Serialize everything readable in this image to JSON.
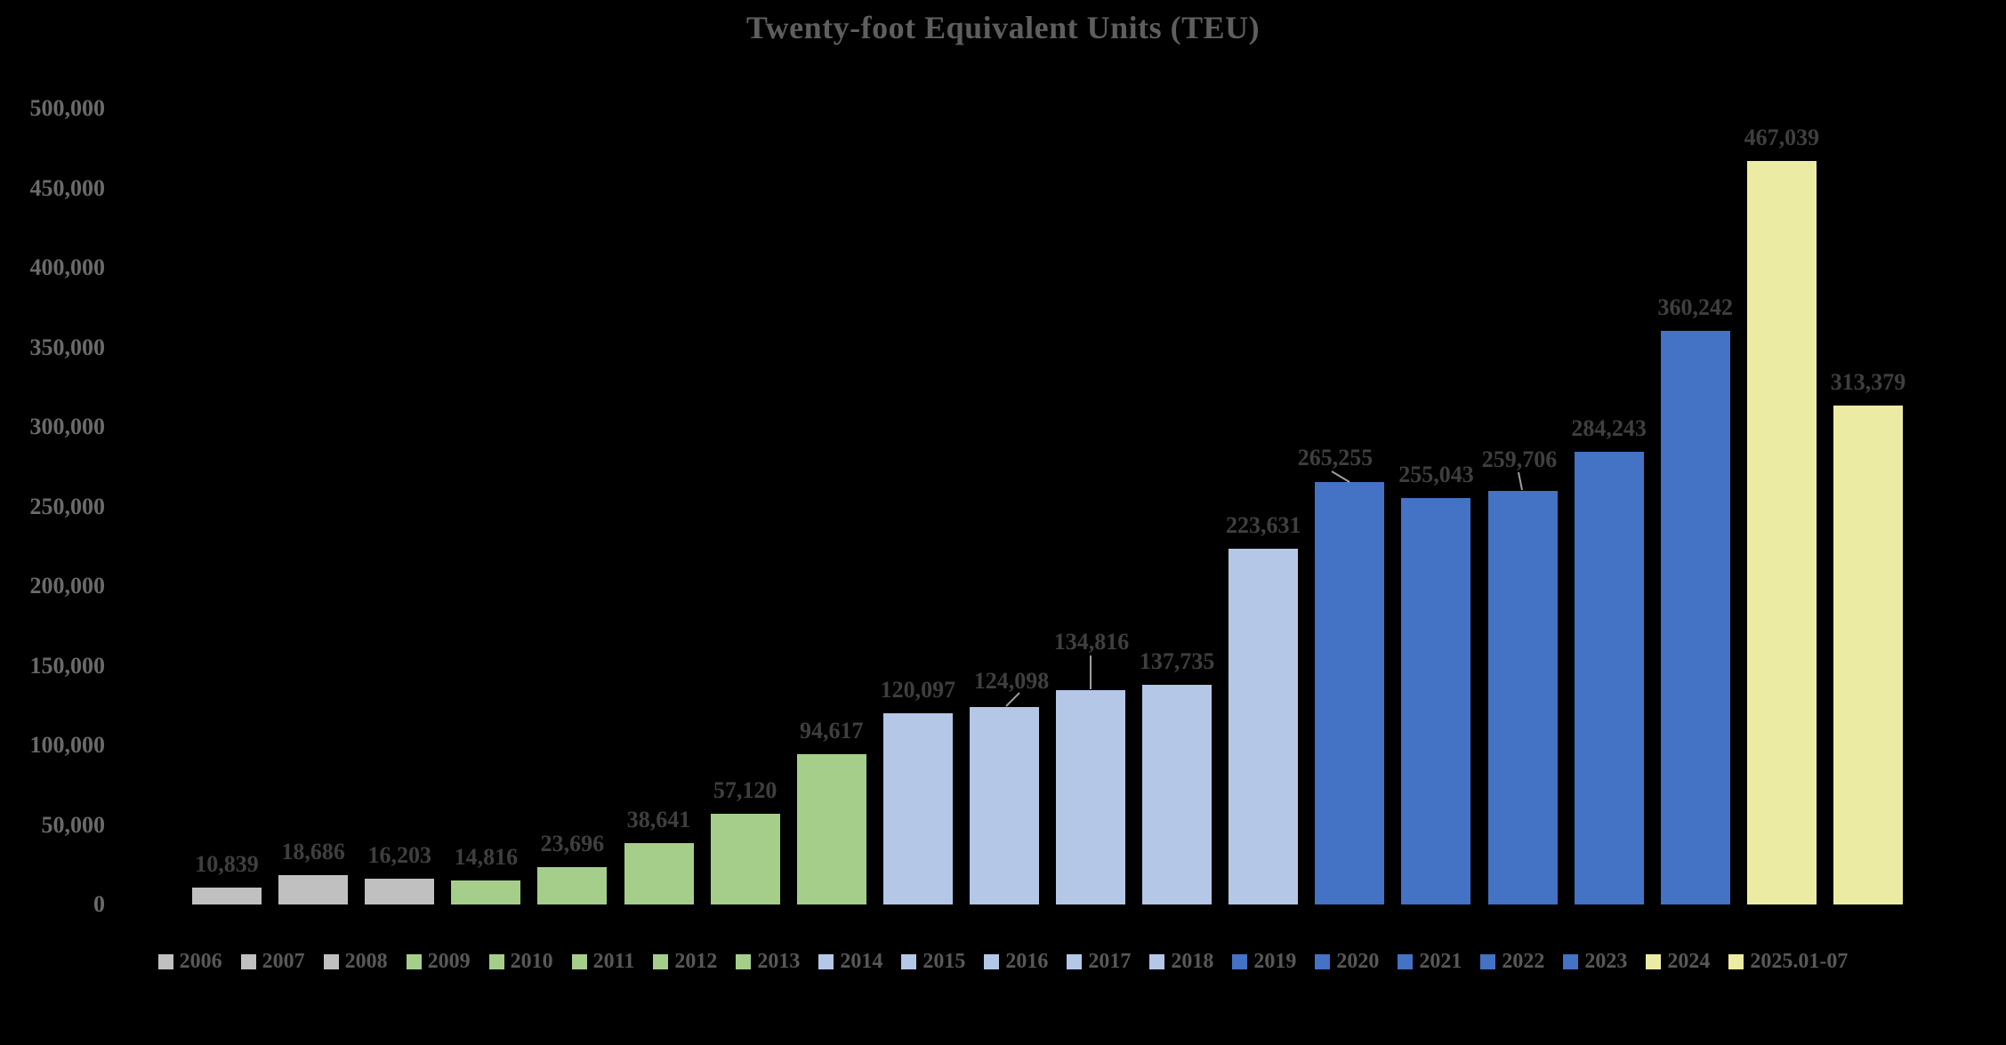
{
  "chart_data": {
    "type": "bar",
    "title": "Twenty-foot Equivalent Units (TEU)",
    "categories": [
      "2006",
      "2007",
      "2008",
      "2009",
      "2010",
      "2011",
      "2012",
      "2013",
      "2014",
      "2015",
      "2016",
      "2017",
      "2018",
      "2019",
      "2020",
      "2021",
      "2022",
      "2023",
      "2024",
      "2025.01-07"
    ],
    "values": [
      10839,
      18686,
      16203,
      14816,
      23696,
      38641,
      57120,
      94617,
      120097,
      124098,
      134816,
      137735,
      223631,
      265255,
      255043,
      259706,
      284243,
      360242,
      467039,
      313379
    ],
    "data_labels": [
      "10,839",
      "18,686",
      "16,203",
      "14,816",
      "23,696",
      "38,641",
      "57,120",
      "94,617",
      "120,097",
      "124,098",
      "134,816",
      "137,735",
      "223,631",
      "265,255",
      "255,043",
      "259,706",
      "284,243",
      "360,242",
      "467,039",
      "313,379"
    ],
    "bar_colors": [
      "#C0C0C0",
      "#C0C0C0",
      "#C0C0C0",
      "#A6CE8B",
      "#A6CE8B",
      "#A6CE8B",
      "#A6CE8B",
      "#A6CE8B",
      "#B4C7E7",
      "#B4C7E7",
      "#B4C7E7",
      "#B4C7E7",
      "#B4C7E7",
      "#4472C4",
      "#4472C4",
      "#4472C4",
      "#4472C4",
      "#4472C4",
      "#ECEBA4",
      "#ECEBA4"
    ],
    "y_axis": {
      "min": 0,
      "max": 500000,
      "ticks": [
        "0",
        "50,000",
        "100,000",
        "150,000",
        "200,000",
        "250,000",
        "300,000",
        "350,000",
        "400,000",
        "450,000",
        "500,000"
      ]
    },
    "xlabel": "",
    "ylabel": "",
    "grid": "off",
    "legend_position": "bottom",
    "legend_entries": [
      "2006",
      "2007",
      "2008",
      "2009",
      "2010",
      "2011",
      "2012",
      "2013",
      "2014",
      "2015",
      "2016",
      "2017",
      "2018",
      "2019",
      "2020",
      "2021",
      "2022",
      "2023",
      "2024",
      "2025.01-07"
    ],
    "background": "#000000"
  },
  "colors": {
    "gray_series": "#C0C0C0",
    "green_series": "#A6CE8B",
    "light_blue_series": "#B4C7E7",
    "blue_series": "#4472C4",
    "yellow_series": "#ECEBA4",
    "title_text": "#5E5E5E",
    "axis_text": "#6A6A6A",
    "data_label_text": "#3F3F3F",
    "legend_text": "#585858",
    "leader_line": "#9E9E9E"
  }
}
